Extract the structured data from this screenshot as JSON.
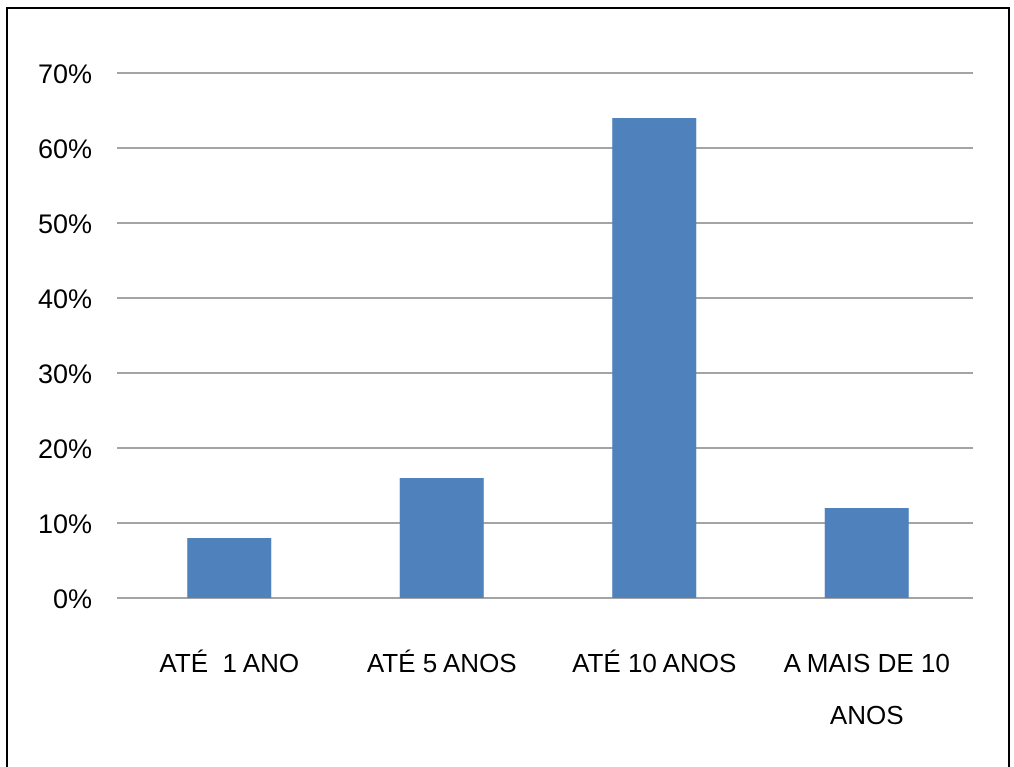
{
  "chart_data": {
    "type": "bar",
    "categories": [
      [
        "ATÉ  1 ANO"
      ],
      [
        "ATÉ 5 ANOS"
      ],
      [
        "ATÉ 10 ANOS"
      ],
      [
        "A MAIS DE 10",
        "ANOS"
      ]
    ],
    "values": [
      8,
      16,
      64,
      12
    ],
    "ylim": [
      0,
      70
    ],
    "yticks": [
      0,
      10,
      20,
      30,
      40,
      50,
      60,
      70
    ],
    "ytick_format": "%",
    "grid": true,
    "legend": "none",
    "colors": {
      "bar": "#4f81bd",
      "grid": "#868686"
    }
  }
}
